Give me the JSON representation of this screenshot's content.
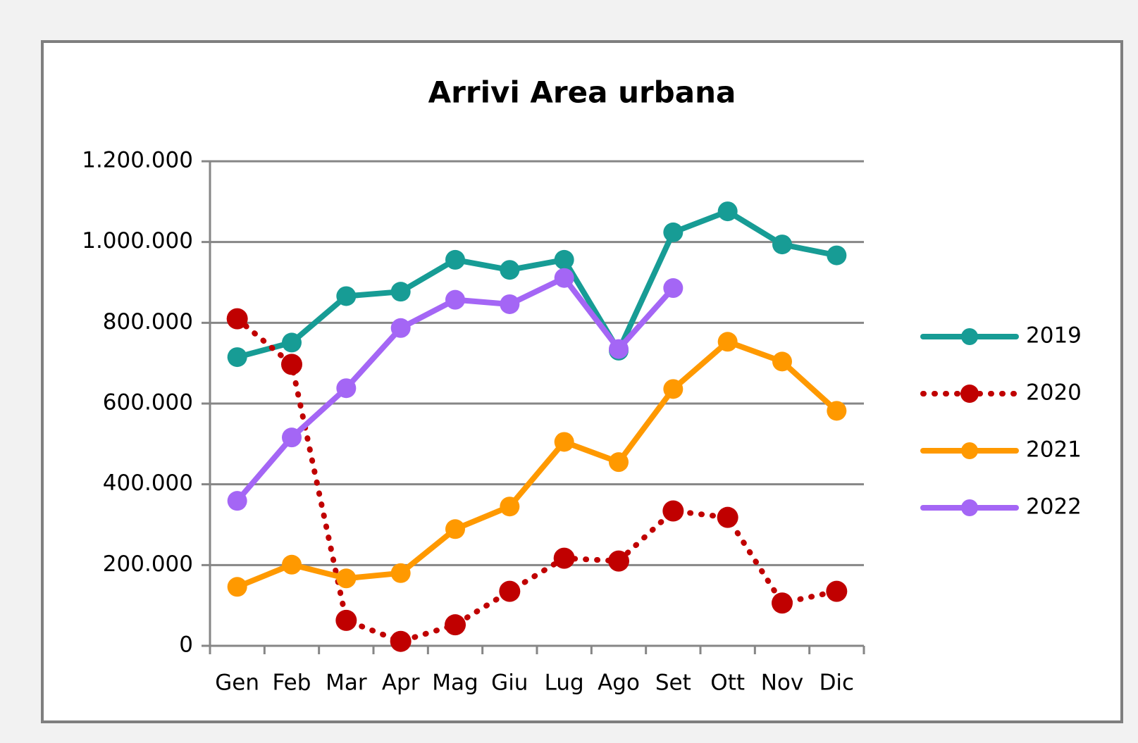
{
  "chart_data": {
    "type": "line",
    "title": "Arrivi Area urbana",
    "categories": [
      "Gen",
      "Feb",
      "Mar",
      "Apr",
      "Mag",
      "Giu",
      "Lug",
      "Ago",
      "Set",
      "Ott",
      "Nov",
      "Dic"
    ],
    "series": [
      {
        "name": "2019",
        "color": "#179c95",
        "style": "solid",
        "values": [
          715000,
          751000,
          866000,
          877000,
          956000,
          931000,
          956000,
          731000,
          1024000,
          1076000,
          994000,
          967000
        ]
      },
      {
        "name": "2020",
        "color": "#c00000",
        "style": "dotted",
        "values": [
          810000,
          697000,
          63000,
          11000,
          52000,
          135000,
          217000,
          210000,
          334000,
          318000,
          106000,
          135000
        ]
      },
      {
        "name": "2021",
        "color": "#ff9900",
        "style": "solid",
        "values": [
          146000,
          201000,
          167000,
          180000,
          289000,
          345000,
          505000,
          455000,
          636000,
          753000,
          704000,
          582000
        ]
      },
      {
        "name": "2022",
        "color": "#a466f5",
        "style": "solid",
        "values": [
          359000,
          516000,
          638000,
          787000,
          857000,
          846000,
          911000,
          735000,
          886000,
          null,
          null,
          null
        ]
      }
    ],
    "ylim": [
      0,
      1200000
    ],
    "yticks": [
      0,
      {
        "value": 200000,
        "label": "200.000"
      },
      {
        "value": 400000,
        "label": "400.000"
      },
      {
        "value": 600000,
        "label": "600.000"
      },
      {
        "value": 800000,
        "label": "800.000"
      },
      {
        "value": 1000000,
        "label": "1.000.000"
      },
      {
        "value": 1200000,
        "label": "1.200.000"
      }
    ],
    "grid": true,
    "legend": "right"
  }
}
